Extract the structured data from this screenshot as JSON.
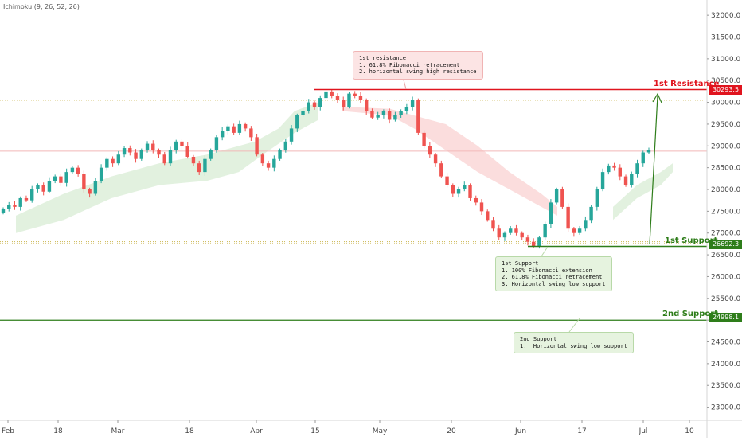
{
  "indicator_label": "Ichimoku (9, 26, 52, 26)",
  "colors": {
    "up": "#26a69a",
    "down": "#ef5350",
    "resistance": "#e0141e",
    "support": "#2e7d1a",
    "cloud_green": "#dff0dc",
    "cloud_red": "#fbd9d9",
    "axis_text": "#444444"
  },
  "annotations": {
    "resistance_note": "1st resistance\n1. 61.8% Fibonacci retracement\n2. horizontal swing high resistance",
    "support1_note": "1st Support\n1. 100% Fibonacci extension\n2. 61.8% Fibonacci retracement\n3. Horizontal swing low support",
    "support2_note": "2nd Support\n1.  Horizontal swing low support"
  },
  "levels": {
    "resistance1": {
      "label": "1st Resistance",
      "price_text": "30293.5"
    },
    "support1": {
      "label": "1st Support",
      "price_text": "26692.3"
    },
    "support2": {
      "label": "2nd Support",
      "price_text": "24998.1"
    }
  },
  "chart_data": {
    "type": "candlestick",
    "y_ticks": [
      "32000.0",
      "31500.0",
      "31000.0",
      "30500.0",
      "30000.0",
      "29500.0",
      "29000.0",
      "28500.0",
      "28000.0",
      "27500.0",
      "27000.0",
      "26500.0",
      "26000.0",
      "25500.0",
      "25000.0",
      "24500.0",
      "24000.0",
      "23500.0",
      "23000.0"
    ],
    "x_ticks": [
      "Feb",
      "18",
      "Mar",
      "18",
      "Apr",
      "15",
      "May",
      "20",
      "Jun",
      "17",
      "Jul",
      "10"
    ],
    "ylim": [
      22700,
      32350
    ],
    "levels": [
      30293.5,
      26692.3,
      24998.1
    ],
    "series": [
      {
        "x": 0,
        "values": [
          27550,
          27650,
          27600,
          27800,
          27750,
          28000,
          28100,
          27950,
          28200,
          28300,
          28150,
          28400,
          28500,
          28350,
          28000,
          27900,
          28200,
          28500,
          28700,
          28600,
          28800,
          28950,
          28850,
          28700,
          28900,
          29050,
          28900,
          28800,
          28600,
          28900,
          29100,
          29000,
          28750,
          28600,
          28400,
          28700,
          28900,
          29200,
          29350,
          29450,
          29300,
          29500,
          29400,
          29200,
          28800,
          28600,
          28500,
          28700,
          28900,
          29100,
          29400,
          29700,
          29800,
          30000,
          29900,
          30100,
          30250,
          30150,
          30050,
          29900,
          30200,
          30150,
          30050,
          29800,
          29650,
          29700,
          29800,
          29600,
          29700,
          29800,
          29900,
          30050,
          29300,
          29000,
          28800,
          28600,
          28300,
          28100,
          27900,
          28000,
          28100,
          27800,
          27700,
          27500,
          27300,
          27100,
          26900,
          27000,
          27100,
          27000,
          26900,
          26800,
          26700,
          26900,
          27200,
          27700,
          28000,
          27600,
          27100,
          27000,
          27100,
          27300,
          27600,
          28000,
          28400,
          28550,
          28500,
          28300,
          28100,
          28350,
          28600,
          28850,
          28900
        ]
      }
    ]
  }
}
